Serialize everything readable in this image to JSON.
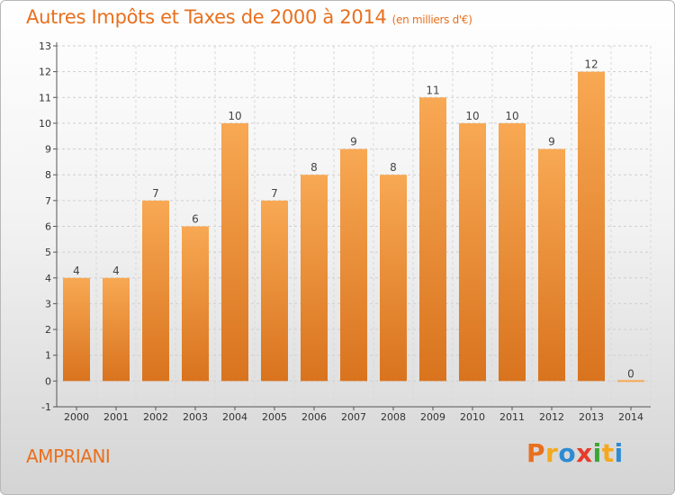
{
  "header": {
    "title": "Autres Impôts et Taxes de 2000 à 2014",
    "unit": "(en milliers d'€)"
  },
  "footer": {
    "commune": "AMPRIANI",
    "logo": [
      "P",
      "r",
      "o",
      "x",
      "i",
      "t",
      "i"
    ],
    "logo_colors": [
      "#e8701e",
      "#f4a81c",
      "#2d8bd2",
      "#e63b2a",
      "#3aa635",
      "#f4a81c",
      "#2d8bd2"
    ]
  },
  "chart_data": {
    "type": "bar",
    "title": "Autres Impôts et Taxes de 2000 à 2014",
    "subtitle": "(en milliers d'€)",
    "categories": [
      "2000",
      "2001",
      "2002",
      "2003",
      "2004",
      "2005",
      "2006",
      "2007",
      "2008",
      "2009",
      "2010",
      "2011",
      "2012",
      "2013",
      "2014"
    ],
    "values": [
      4,
      4,
      7,
      6,
      10,
      7,
      8,
      9,
      8,
      11,
      10,
      10,
      9,
      12,
      0
    ],
    "ylim": [
      -1,
      13
    ],
    "yticks": [
      -1,
      0,
      1,
      2,
      3,
      4,
      5,
      6,
      7,
      8,
      9,
      10,
      11,
      12,
      13
    ],
    "grid": true,
    "bar_color_top": "#f8a853",
    "bar_color_bottom": "#d9731e"
  }
}
